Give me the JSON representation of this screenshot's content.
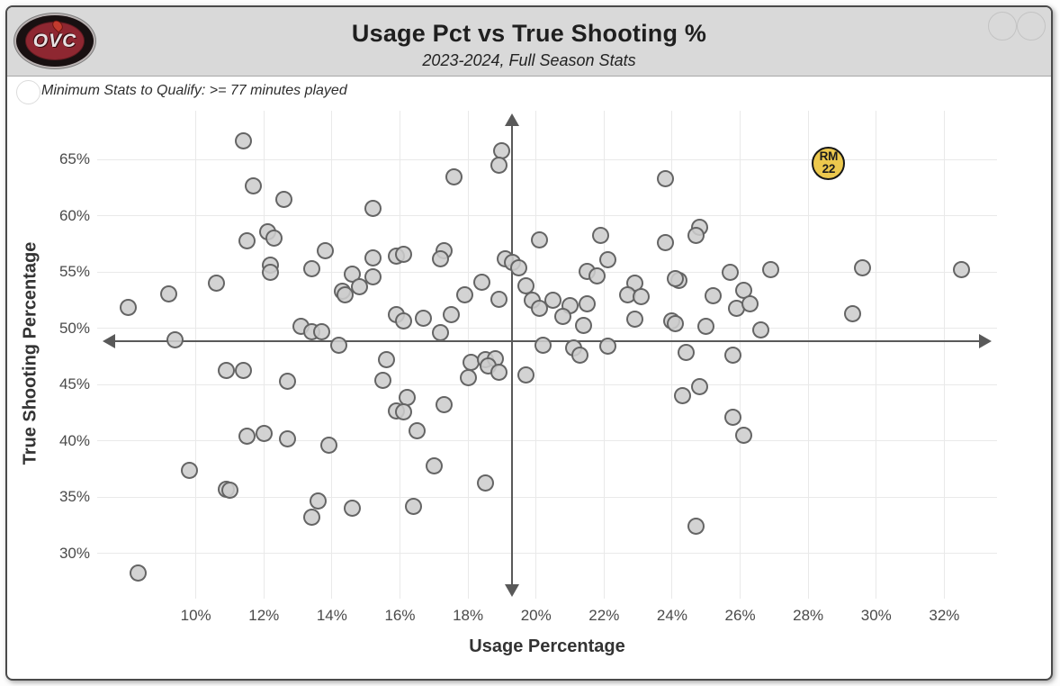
{
  "header": {
    "logo_text": "OVC",
    "title": "Usage Pct vs True Shooting %",
    "subtitle": "2023-2024, Full Season Stats"
  },
  "note": "Minimum Stats to Qualify: >= 77 minutes played",
  "colors": {
    "header_bg": "#d9d9d9",
    "card_border": "#4a4a4a",
    "point_fill": "#cdcdcd",
    "point_stroke": "#5f5f5f",
    "highlight_fill": "#ecc84d",
    "mean_line": "#595959",
    "gridline": "#e9e9e9",
    "logo_maroon": "#8e2731"
  },
  "chart_data": {
    "type": "scatter",
    "title": "Usage Pct vs True Shooting %",
    "subtitle": "2023-2024, Full Season Stats",
    "xlabel": "Usage Percentage",
    "ylabel": "True Shooting Percentage",
    "tick_format": "percent",
    "grid": true,
    "x_ticks": [
      10,
      12,
      14,
      16,
      18,
      20,
      22,
      24,
      26,
      28,
      30,
      32
    ],
    "y_ticks": [
      30,
      35,
      40,
      45,
      50,
      55,
      60,
      65
    ],
    "x_range": [
      7.1,
      33.55
    ],
    "y_range": [
      26.0,
      69.35
    ],
    "mean_lines": {
      "usage_pct": 19.3,
      "true_shooting_pct": 48.9
    },
    "highlight_point": {
      "label_line1": "RM",
      "label_line2": "22",
      "usage_pct": 28.6,
      "true_shooting_pct": 64.7
    },
    "points_unit": [
      "usage_pct",
      "true_shooting_pct"
    ],
    "points": [
      [
        11.4,
        66.7
      ],
      [
        11.7,
        62.7
      ],
      [
        12.6,
        61.5
      ],
      [
        15.2,
        60.7
      ],
      [
        11.5,
        57.8
      ],
      [
        12.1,
        58.6
      ],
      [
        12.3,
        58.0
      ],
      [
        12.2,
        55.6
      ],
      [
        12.2,
        55.0
      ],
      [
        13.8,
        56.9
      ],
      [
        13.4,
        55.3
      ],
      [
        15.2,
        56.3
      ],
      [
        15.9,
        56.4
      ],
      [
        14.6,
        54.8
      ],
      [
        15.2,
        54.6
      ],
      [
        14.8,
        53.7
      ],
      [
        14.3,
        53.3
      ],
      [
        14.4,
        53.0
      ],
      [
        10.6,
        54.0
      ],
      [
        9.2,
        53.1
      ],
      [
        8.0,
        51.9
      ],
      [
        9.4,
        49.0
      ],
      [
        13.1,
        50.2
      ],
      [
        13.4,
        49.7
      ],
      [
        13.7,
        49.7
      ],
      [
        14.2,
        48.5
      ],
      [
        19.0,
        65.8
      ],
      [
        18.9,
        64.5
      ],
      [
        17.6,
        63.5
      ],
      [
        23.8,
        63.3
      ],
      [
        20.1,
        57.9
      ],
      [
        21.9,
        58.3
      ],
      [
        23.8,
        57.6
      ],
      [
        16.1,
        56.6
      ],
      [
        17.3,
        56.9
      ],
      [
        17.2,
        56.2
      ],
      [
        19.1,
        56.2
      ],
      [
        19.3,
        55.9
      ],
      [
        19.5,
        55.4
      ],
      [
        21.5,
        55.1
      ],
      [
        21.8,
        54.7
      ],
      [
        22.1,
        56.1
      ],
      [
        24.2,
        54.3
      ],
      [
        22.9,
        54.0
      ],
      [
        22.7,
        53.0
      ],
      [
        23.1,
        52.8
      ],
      [
        19.7,
        53.8
      ],
      [
        18.4,
        54.1
      ],
      [
        17.9,
        53.0
      ],
      [
        18.9,
        52.6
      ],
      [
        19.9,
        52.5
      ],
      [
        20.1,
        51.8
      ],
      [
        20.5,
        52.5
      ],
      [
        21.0,
        52.0
      ],
      [
        20.8,
        51.1
      ],
      [
        21.5,
        52.2
      ],
      [
        15.9,
        51.2
      ],
      [
        16.1,
        50.7
      ],
      [
        16.7,
        50.9
      ],
      [
        17.5,
        51.2
      ],
      [
        17.2,
        49.6
      ],
      [
        21.4,
        50.3
      ],
      [
        22.9,
        50.8
      ],
      [
        24.0,
        50.7
      ],
      [
        24.8,
        59.0
      ],
      [
        24.7,
        58.3
      ],
      [
        26.9,
        55.2
      ],
      [
        29.6,
        55.4
      ],
      [
        32.5,
        55.2
      ],
      [
        25.7,
        55.0
      ],
      [
        24.1,
        54.4
      ],
      [
        26.1,
        53.4
      ],
      [
        25.2,
        52.9
      ],
      [
        25.9,
        51.8
      ],
      [
        26.3,
        52.2
      ],
      [
        29.3,
        51.3
      ],
      [
        24.1,
        50.4
      ],
      [
        25.0,
        50.2
      ],
      [
        26.6,
        49.9
      ],
      [
        24.4,
        47.9
      ],
      [
        25.8,
        47.6
      ],
      [
        10.9,
        46.3
      ],
      [
        11.4,
        46.3
      ],
      [
        12.7,
        45.3
      ],
      [
        15.6,
        47.2
      ],
      [
        15.5,
        45.4
      ],
      [
        16.2,
        43.9
      ],
      [
        15.9,
        42.7
      ],
      [
        16.1,
        42.6
      ],
      [
        16.5,
        40.9
      ],
      [
        17.3,
        43.2
      ],
      [
        18.1,
        47.0
      ],
      [
        18.0,
        45.6
      ],
      [
        18.5,
        47.2
      ],
      [
        18.8,
        47.3
      ],
      [
        18.6,
        46.7
      ],
      [
        18.9,
        46.1
      ],
      [
        19.7,
        45.9
      ],
      [
        20.2,
        48.5
      ],
      [
        21.1,
        48.3
      ],
      [
        21.3,
        47.6
      ],
      [
        22.1,
        48.4
      ],
      [
        11.5,
        40.4
      ],
      [
        12.0,
        40.7
      ],
      [
        12.7,
        40.2
      ],
      [
        13.9,
        39.6
      ],
      [
        9.8,
        37.4
      ],
      [
        17.0,
        37.8
      ],
      [
        18.5,
        36.3
      ],
      [
        10.9,
        35.7
      ],
      [
        11.0,
        35.6
      ],
      [
        13.6,
        34.7
      ],
      [
        13.4,
        33.2
      ],
      [
        14.6,
        34.0
      ],
      [
        16.4,
        34.2
      ],
      [
        8.3,
        28.3
      ],
      [
        24.3,
        44.0
      ],
      [
        24.8,
        44.8
      ],
      [
        25.8,
        42.1
      ],
      [
        26.1,
        40.5
      ],
      [
        24.7,
        32.4
      ]
    ]
  }
}
